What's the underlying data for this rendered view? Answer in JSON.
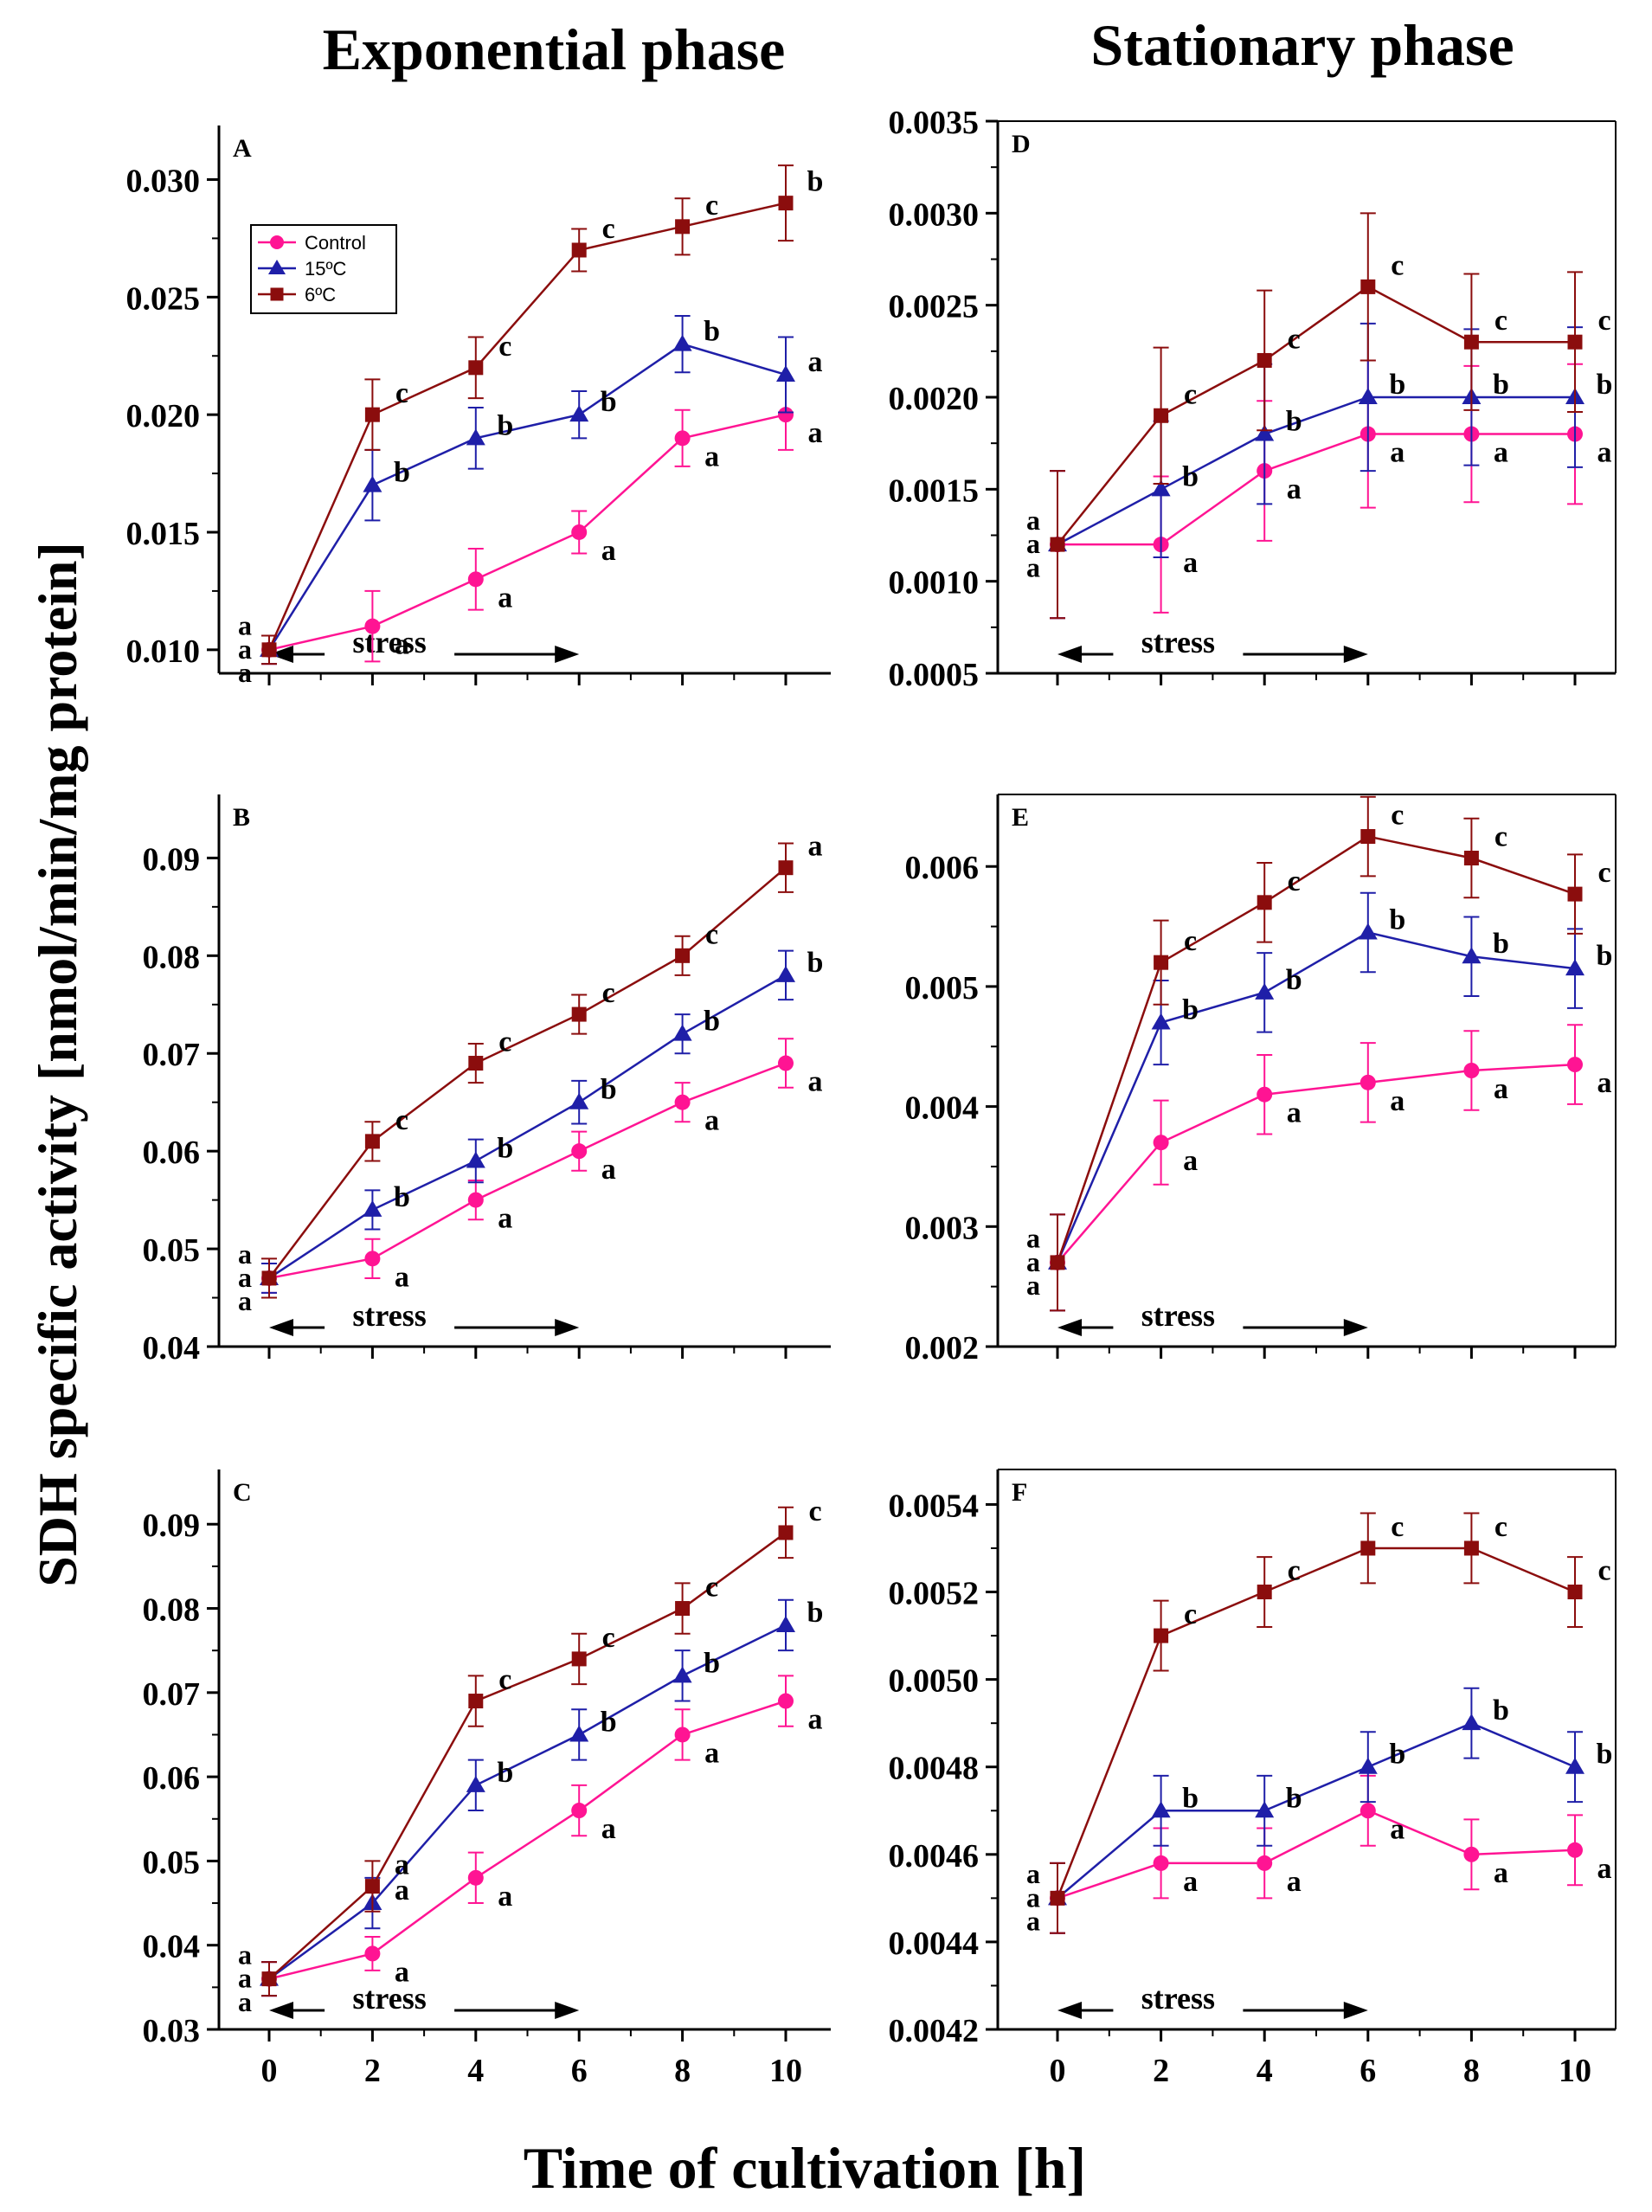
{
  "titles": {
    "left_column": "Exponential phase",
    "right_column": "Stationary phase",
    "y_axis": "SDH specific activity [nmol/min/mg protein]",
    "x_axis": "Time of cultivation [h]"
  },
  "legend": {
    "items": [
      {
        "label": "Control",
        "color": "#ff1493",
        "marker": "circle"
      },
      {
        "label": "15ºC",
        "color": "#1f1fa8",
        "marker": "triangle"
      },
      {
        "label": "6ºC",
        "color": "#8b0d0d",
        "marker": "square"
      }
    ]
  },
  "stress_label": "stress",
  "x_ticks": [
    "0",
    "2",
    "4",
    "6",
    "8",
    "10"
  ],
  "chart_data": [
    {
      "panel": "A",
      "type": "line",
      "ylim": [
        0.009,
        0.0323
      ],
      "y_ticks": [
        0.01,
        0.015,
        0.02,
        0.025,
        0.03
      ],
      "y_tick_labels": [
        "0.010",
        "0.015",
        "0.020",
        "0.025",
        "0.030"
      ],
      "x": [
        0,
        2,
        4,
        6,
        8,
        10
      ],
      "stress_range": [
        0,
        6
      ],
      "series": [
        {
          "name": "Control",
          "values": [
            0.01,
            0.011,
            0.013,
            0.015,
            0.019,
            0.02
          ],
          "errors": [
            0.0006,
            0.0015,
            0.0013,
            0.0009,
            0.0012,
            0.0015
          ],
          "letters": [
            "a",
            "a",
            "a",
            "a",
            "a",
            "a"
          ]
        },
        {
          "name": "15ºC",
          "values": [
            0.01,
            0.017,
            0.019,
            0.02,
            0.023,
            0.0217
          ],
          "errors": [
            0.0006,
            0.0015,
            0.0013,
            0.001,
            0.0012,
            0.0016
          ],
          "letters": [
            "a",
            "b",
            "b",
            "b",
            "b",
            "a"
          ]
        },
        {
          "name": "6ºC",
          "values": [
            0.01,
            0.02,
            0.022,
            0.027,
            0.028,
            0.029
          ],
          "errors": [
            0.0006,
            0.0015,
            0.0013,
            0.0009,
            0.0012,
            0.0016
          ],
          "letters": [
            "a",
            "c",
            "c",
            "c",
            "c",
            "b"
          ]
        }
      ]
    },
    {
      "panel": "B",
      "type": "line",
      "ylim": [
        0.04,
        0.0965
      ],
      "y_ticks": [
        0.04,
        0.05,
        0.06,
        0.07,
        0.08,
        0.09
      ],
      "y_tick_labels": [
        "0.04",
        "0.05",
        "0.06",
        "0.07",
        "0.08",
        "0.09"
      ],
      "x": [
        0,
        2,
        4,
        6,
        8,
        10
      ],
      "stress_range": [
        0,
        6
      ],
      "series": [
        {
          "name": "Control",
          "values": [
            0.047,
            0.049,
            0.055,
            0.06,
            0.065,
            0.069
          ],
          "errors": [
            0.0015,
            0.002,
            0.002,
            0.002,
            0.002,
            0.0025
          ],
          "letters": [
            "a",
            "a",
            "a",
            "a",
            "a",
            "a"
          ]
        },
        {
          "name": "15ºC",
          "values": [
            0.047,
            0.054,
            0.059,
            0.065,
            0.072,
            0.078
          ],
          "errors": [
            0.0015,
            0.002,
            0.0022,
            0.0022,
            0.002,
            0.0025
          ],
          "letters": [
            "a",
            "b",
            "b",
            "b",
            "b",
            "b"
          ]
        },
        {
          "name": "6ºC",
          "values": [
            0.047,
            0.061,
            0.069,
            0.074,
            0.08,
            0.089
          ],
          "errors": [
            0.002,
            0.002,
            0.002,
            0.002,
            0.002,
            0.0025
          ],
          "letters": [
            "a",
            "c",
            "c",
            "c",
            "c",
            "a"
          ]
        }
      ]
    },
    {
      "panel": "C",
      "type": "line",
      "ylim": [
        0.03,
        0.0965
      ],
      "y_ticks": [
        0.03,
        0.04,
        0.05,
        0.06,
        0.07,
        0.08,
        0.09
      ],
      "y_tick_labels": [
        "0.03",
        "0.04",
        "0.05",
        "0.06",
        "0.07",
        "0.08",
        "0.09"
      ],
      "x": [
        0,
        2,
        4,
        6,
        8,
        10
      ],
      "stress_range": [
        0,
        6
      ],
      "series": [
        {
          "name": "Control",
          "values": [
            0.036,
            0.039,
            0.048,
            0.056,
            0.065,
            0.069
          ],
          "errors": [
            0.002,
            0.002,
            0.003,
            0.003,
            0.003,
            0.003
          ],
          "letters": [
            "a",
            "a",
            "a",
            "a",
            "a",
            "a"
          ]
        },
        {
          "name": "15ºC",
          "values": [
            0.036,
            0.045,
            0.059,
            0.065,
            0.072,
            0.078
          ],
          "errors": [
            0.002,
            0.003,
            0.003,
            0.003,
            0.003,
            0.003
          ],
          "letters": [
            "a",
            "a",
            "b",
            "b",
            "b",
            "b"
          ]
        },
        {
          "name": "6ºC",
          "values": [
            0.036,
            0.047,
            0.069,
            0.074,
            0.08,
            0.089
          ],
          "errors": [
            0.002,
            0.003,
            0.003,
            0.003,
            0.003,
            0.003
          ],
          "letters": [
            "a",
            "a",
            "c",
            "c",
            "c",
            "c"
          ]
        }
      ]
    },
    {
      "panel": "D",
      "type": "line",
      "ylim": [
        0.0005,
        0.0035
      ],
      "y_ticks": [
        0.0005,
        0.001,
        0.0015,
        0.002,
        0.0025,
        0.003,
        0.0035
      ],
      "y_tick_labels": [
        "0.0005",
        "0.0010",
        "0.0015",
        "0.0020",
        "0.0025",
        "0.0030",
        "0.0035"
      ],
      "x": [
        0,
        2,
        4,
        6,
        8,
        10
      ],
      "stress_range": [
        0,
        6
      ],
      "series": [
        {
          "name": "Control",
          "values": [
            0.0012,
            0.0012,
            0.0016,
            0.0018,
            0.0018,
            0.0018
          ],
          "errors": [
            0.0004,
            0.00037,
            0.00038,
            0.0004,
            0.00037,
            0.00038
          ],
          "letters": [
            "a",
            "a",
            "a",
            "a",
            "a",
            "a"
          ]
        },
        {
          "name": "15ºC",
          "values": [
            0.0012,
            0.0015,
            0.0018,
            0.002,
            0.002,
            0.002
          ],
          "errors": [
            0.0004,
            0.00037,
            0.00038,
            0.0004,
            0.00037,
            0.00038
          ],
          "letters": [
            "a",
            "b",
            "b",
            "b",
            "b",
            "b"
          ]
        },
        {
          "name": "6ºC",
          "values": [
            0.0012,
            0.0019,
            0.0022,
            0.0026,
            0.0023,
            0.0023
          ],
          "errors": [
            0.0004,
            0.00037,
            0.00038,
            0.0004,
            0.00037,
            0.00038
          ],
          "letters": [
            "a",
            "c",
            "c",
            "c",
            "c",
            "c"
          ]
        }
      ]
    },
    {
      "panel": "E",
      "type": "line",
      "ylim": [
        0.002,
        0.0066
      ],
      "y_ticks": [
        0.002,
        0.003,
        0.004,
        0.005,
        0.006
      ],
      "y_tick_labels": [
        "0.002",
        "0.003",
        "0.004",
        "0.005",
        "0.006"
      ],
      "x": [
        0,
        2,
        4,
        6,
        8,
        10
      ],
      "stress_range": [
        0,
        6
      ],
      "series": [
        {
          "name": "Control",
          "values": [
            0.0027,
            0.0037,
            0.0041,
            0.0042,
            0.0043,
            0.00435
          ],
          "errors": [
            0.0004,
            0.00035,
            0.00033,
            0.00033,
            0.00033,
            0.00033
          ],
          "letters": [
            "a",
            "a",
            "a",
            "a",
            "a",
            "a"
          ]
        },
        {
          "name": "15ºC",
          "values": [
            0.0027,
            0.0047,
            0.00495,
            0.00545,
            0.00525,
            0.00515
          ],
          "errors": [
            0.0004,
            0.00035,
            0.00033,
            0.00033,
            0.00033,
            0.00033
          ],
          "letters": [
            "a",
            "b",
            "b",
            "b",
            "b",
            "b"
          ]
        },
        {
          "name": "6ºC",
          "values": [
            0.0027,
            0.0052,
            0.0057,
            0.00625,
            0.00607,
            0.00577
          ],
          "errors": [
            0.0004,
            0.00035,
            0.00033,
            0.00033,
            0.00033,
            0.00033
          ],
          "letters": [
            "a",
            "c",
            "c",
            "c",
            "c",
            "c"
          ]
        }
      ]
    },
    {
      "panel": "F",
      "type": "line",
      "ylim": [
        0.0042,
        0.00548
      ],
      "y_ticks": [
        0.0042,
        0.0044,
        0.0046,
        0.0048,
        0.005,
        0.0052,
        0.0054
      ],
      "y_tick_labels": [
        "0.0042",
        "0.0044",
        "0.0046",
        "0.0048",
        "0.0050",
        "0.0052",
        "0.0054"
      ],
      "x": [
        0,
        2,
        4,
        6,
        8,
        10
      ],
      "stress_range": [
        0,
        6
      ],
      "series": [
        {
          "name": "Control",
          "values": [
            0.0045,
            0.00458,
            0.00458,
            0.0047,
            0.0046,
            0.00461
          ],
          "errors": [
            8e-05,
            8e-05,
            8e-05,
            8e-05,
            8e-05,
            8e-05
          ],
          "letters": [
            "a",
            "a",
            "a",
            "a",
            "a",
            "a"
          ]
        },
        {
          "name": "15ºC",
          "values": [
            0.0045,
            0.0047,
            0.0047,
            0.0048,
            0.0049,
            0.0048
          ],
          "errors": [
            8e-05,
            8e-05,
            8e-05,
            8e-05,
            8e-05,
            8e-05
          ],
          "letters": [
            "a",
            "b",
            "b",
            "b",
            "b",
            "b"
          ]
        },
        {
          "name": "6ºC",
          "values": [
            0.0045,
            0.0051,
            0.0052,
            0.0053,
            0.0053,
            0.0052
          ],
          "errors": [
            8e-05,
            8e-05,
            8e-05,
            8e-05,
            8e-05,
            8e-05
          ],
          "letters": [
            "a",
            "c",
            "c",
            "c",
            "c",
            "c"
          ]
        }
      ]
    }
  ]
}
